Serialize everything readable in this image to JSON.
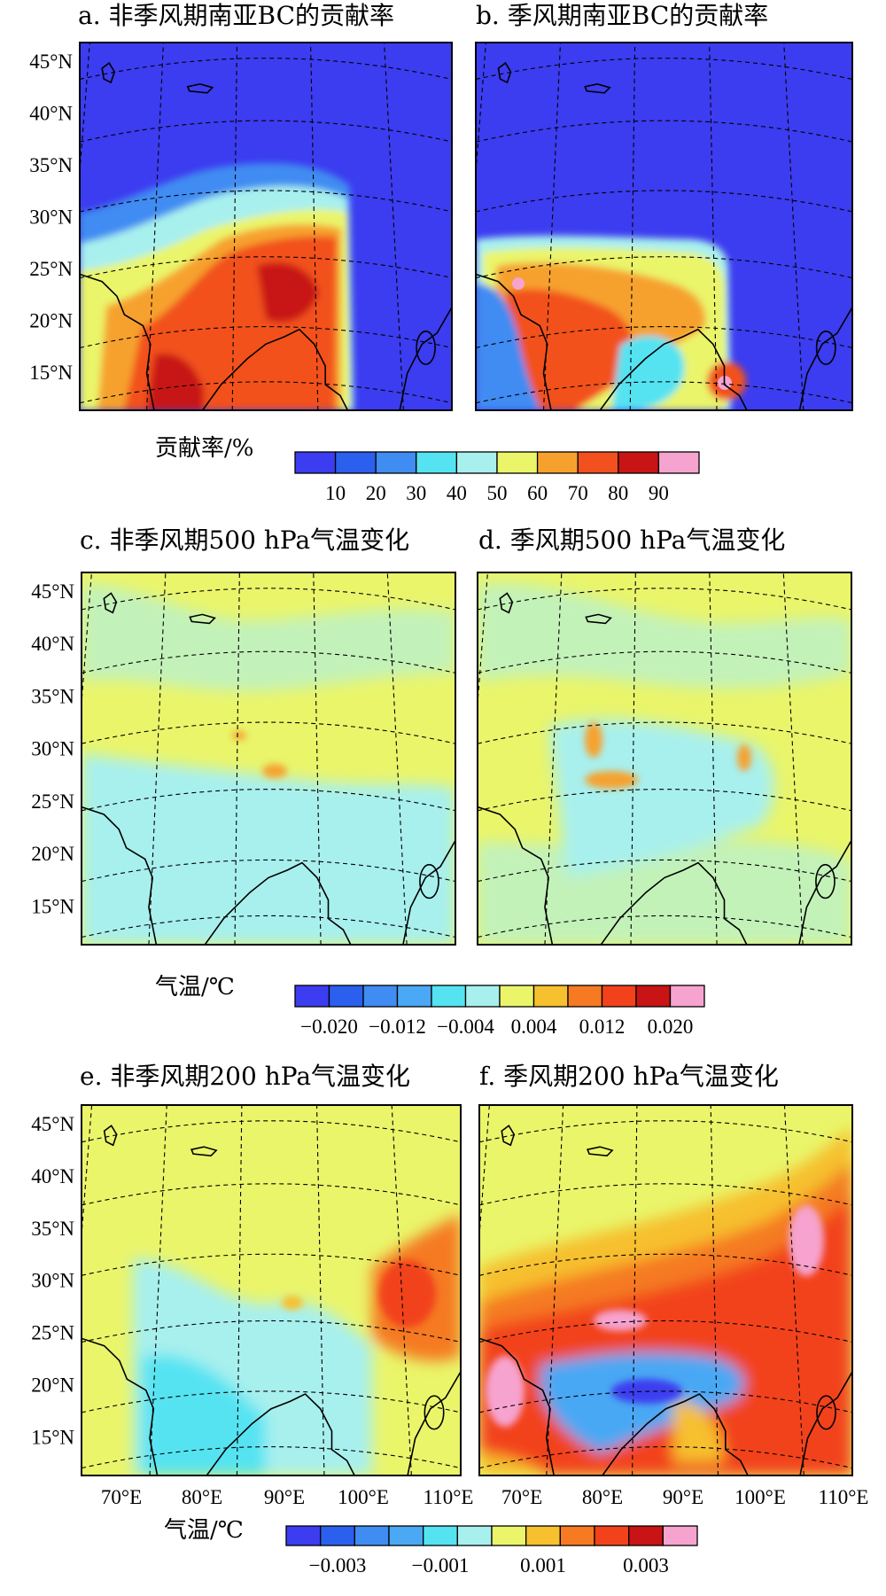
{
  "colors": {
    "bc": [
      "#3c3cf0",
      "#2b5fee",
      "#3f8cf2",
      "#55e3f2",
      "#a8f0ee",
      "#eaf56a",
      "#f6a12e",
      "#f2511f",
      "#c81414",
      "#f6a3cf"
    ],
    "temp": [
      "#3c3cf0",
      "#2b5fee",
      "#3f8cf2",
      "#4aa8f4",
      "#55e3f2",
      "#a8f0ee",
      "#eaf56a",
      "#f6c02e",
      "#f57a22",
      "#f2421c",
      "#c81414",
      "#f6a3cf"
    ]
  },
  "panels": [
    {
      "id": "a",
      "title": "a. 非季风期南亚BC的贡献率"
    },
    {
      "id": "b",
      "title": "b. 季风期南亚BC的贡献率"
    },
    {
      "id": "c",
      "title": "c. 非季风期500 hPa气温变化"
    },
    {
      "id": "d",
      "title": "d. 季风期500 hPa气温变化"
    },
    {
      "id": "e",
      "title": "e. 非季风期200 hPa气温变化"
    },
    {
      "id": "f",
      "title": "f. 季风期200 hPa气温变化"
    }
  ],
  "lat_labels": [
    "45°N",
    "40°N",
    "35°N",
    "30°N",
    "25°N",
    "20°N",
    "15°N"
  ],
  "lon_labels": [
    "70°E",
    "80°E",
    "90°E",
    "100°E",
    "110°E"
  ],
  "colorbars": [
    {
      "id": "bc",
      "title": "贡献率/%",
      "ticks": [
        "10",
        "20",
        "30",
        "40",
        "50",
        "60",
        "70",
        "80",
        "90"
      ]
    },
    {
      "id": "t500",
      "title": "气温/℃",
      "ticks": [
        "−0.020",
        "−0.012",
        "−0.004",
        "0.004",
        "0.012",
        "0.020"
      ]
    },
    {
      "id": "t200",
      "title": "气温/℃",
      "ticks": [
        "−0.003",
        "−0.001",
        "0.001",
        "0.003"
      ]
    }
  ]
}
